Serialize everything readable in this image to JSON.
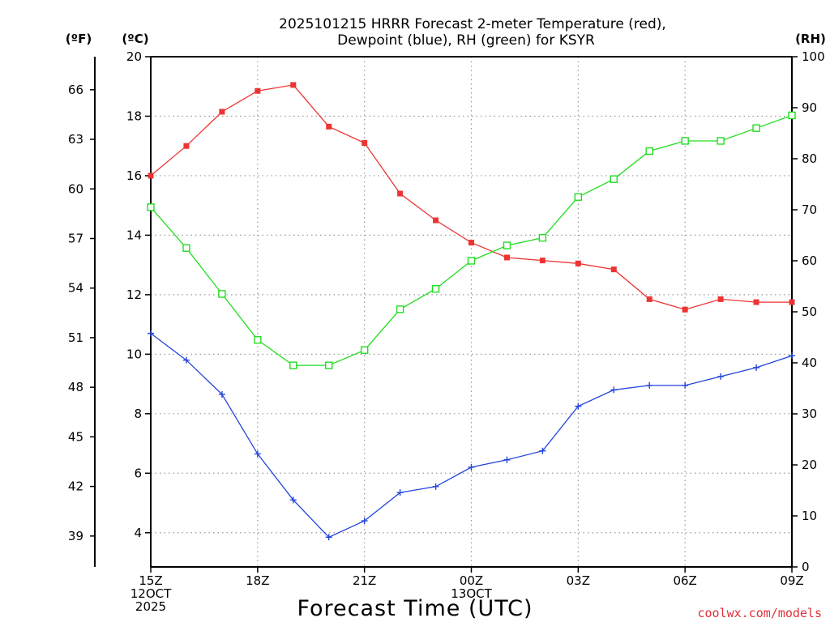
{
  "chart_data": {
    "type": "line",
    "title": [
      "2025101215 HRRR Forecast 2-meter Temperature (red),",
      "Dewpoint (blue), RH (green) for KSYR"
    ],
    "xlabel": "Forecast Time (UTC)",
    "credit": "coolwx.com/models",
    "x_hours": [
      0,
      1,
      2,
      3,
      4,
      5,
      6,
      7,
      8,
      9,
      10,
      11,
      12,
      13,
      14,
      15,
      16,
      17,
      18
    ],
    "x_ticks": [
      {
        "hour": 0,
        "lines": [
          "15Z",
          "12OCT",
          "2025"
        ]
      },
      {
        "hour": 3,
        "lines": [
          "18Z"
        ]
      },
      {
        "hour": 6,
        "lines": [
          "21Z"
        ]
      },
      {
        "hour": 9,
        "lines": [
          "00Z",
          "13OCT"
        ]
      },
      {
        "hour": 12,
        "lines": [
          "03Z"
        ]
      },
      {
        "hour": 15,
        "lines": [
          "06Z"
        ]
      },
      {
        "hour": 18,
        "lines": [
          "09Z"
        ]
      }
    ],
    "axes": {
      "celsius": {
        "label": "(ºC)",
        "min": 2.85,
        "max": 20,
        "ticks": [
          4,
          6,
          8,
          10,
          12,
          14,
          16,
          18,
          20
        ]
      },
      "fahrenheit": {
        "label": "(ºF)",
        "ticks": [
          39,
          42,
          45,
          48,
          51,
          54,
          57,
          60,
          63,
          66
        ]
      },
      "rh": {
        "label": "(RH)",
        "min": 0,
        "max": 100,
        "ticks": [
          0,
          10,
          20,
          30,
          40,
          50,
          60,
          70,
          80,
          90,
          100
        ]
      }
    },
    "series": [
      {
        "name": "Temperature",
        "color": "#ee3333",
        "marker": "filled-square",
        "axis": "celsius",
        "values": [
          16.0,
          17.0,
          18.15,
          18.85,
          19.05,
          17.65,
          17.1,
          15.4,
          14.5,
          13.75,
          13.25,
          13.15,
          13.05,
          12.85,
          11.85,
          11.5,
          11.85,
          11.75,
          11.75
        ]
      },
      {
        "name": "Dewpoint",
        "color": "#2244dd",
        "marker": "plus",
        "axis": "celsius",
        "values": [
          10.7,
          9.8,
          8.65,
          6.65,
          5.1,
          3.85,
          4.4,
          5.35,
          5.55,
          6.2,
          6.45,
          6.75,
          8.25,
          8.8,
          8.95,
          8.95,
          9.25,
          9.55,
          9.95
        ]
      },
      {
        "name": "RH",
        "color": "#22dd22",
        "marker": "open-square",
        "axis": "rh",
        "values": [
          70.5,
          62.5,
          53.5,
          44.5,
          39.5,
          39.5,
          42.5,
          50.5,
          54.5,
          60.0,
          63.0,
          64.5,
          72.5,
          76.0,
          81.5,
          83.5,
          83.5,
          86.0,
          88.5
        ]
      }
    ]
  }
}
